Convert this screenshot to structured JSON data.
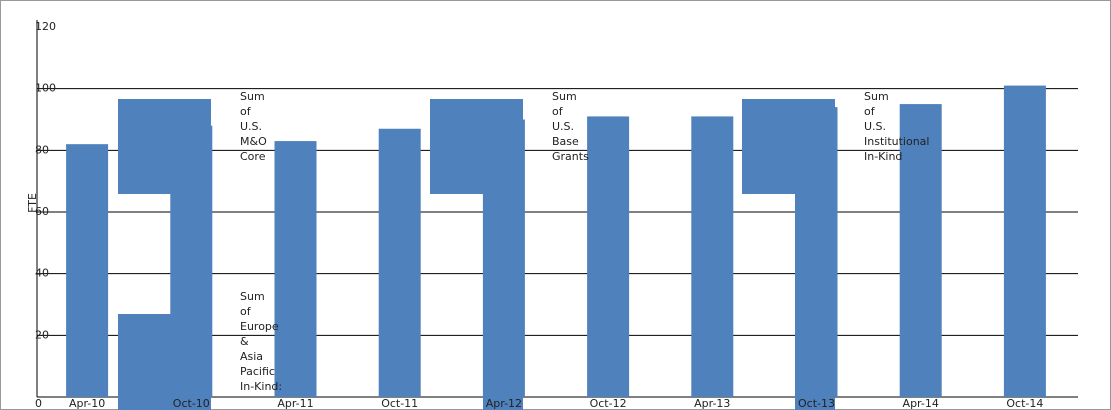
{
  "chart_data": {
    "type": "bar",
    "y_label": "FTE",
    "categories": [
      "Apr-10",
      "Oct-10",
      "Apr-11",
      "Oct-11",
      "Apr-12",
      "Oct-12",
      "Apr-13",
      "Oct-13",
      "Apr-14",
      "Oct-14"
    ],
    "values": [
      82,
      88,
      83,
      87,
      90,
      91,
      91,
      94,
      95,
      101
    ],
    "color": "#4f81bd",
    "ylim": [
      0,
      120
    ],
    "yticks": [
      0,
      20,
      40,
      60,
      80,
      100,
      120
    ],
    "grid": true,
    "legend_labels": [
      "Sum of U.S. M&O Core",
      "Sum of Europe & Asia Pacific In-Kind:",
      "Sum of U.S. Base Grants",
      "Sum of U.S. Institutional In-Kind"
    ]
  }
}
